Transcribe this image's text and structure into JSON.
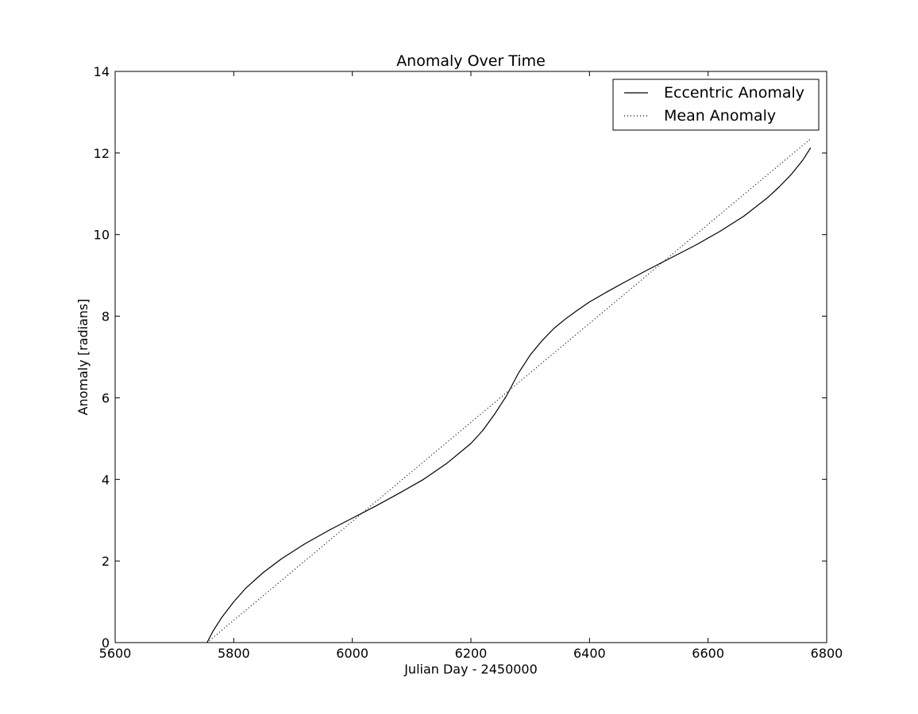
{
  "chart_data": {
    "type": "line",
    "title": "Anomaly Over Time",
    "xlabel": "Julian Day - 2450000",
    "ylabel": "Anomaly [radians]",
    "xlim": [
      5600,
      6800
    ],
    "ylim": [
      0,
      14
    ],
    "xticks": [
      5600,
      5800,
      6000,
      6200,
      6400,
      6600,
      6800
    ],
    "yticks": [
      0,
      2,
      4,
      6,
      8,
      10,
      12,
      14
    ],
    "grid": false,
    "legend_position": "top-right",
    "series": [
      {
        "name": "Eccentric Anomaly",
        "style": "solid",
        "color": "#000000",
        "x": [
          5755,
          5765,
          5780,
          5800,
          5820,
          5850,
          5880,
          5920,
          5960,
          6000,
          6040,
          6080,
          6120,
          6160,
          6200,
          6220,
          6240,
          6260,
          6280,
          6300,
          6320,
          6340,
          6360,
          6380,
          6400,
          6430,
          6460,
          6500,
          6540,
          6580,
          6620,
          6660,
          6700,
          6720,
          6740,
          6760,
          6773
        ],
        "y": [
          0,
          0.28,
          0.62,
          1.0,
          1.33,
          1.72,
          2.05,
          2.42,
          2.75,
          3.05,
          3.35,
          3.67,
          4.0,
          4.4,
          4.88,
          5.2,
          5.6,
          6.05,
          6.6,
          7.05,
          7.4,
          7.7,
          7.94,
          8.15,
          8.35,
          8.6,
          8.84,
          9.15,
          9.45,
          9.75,
          10.08,
          10.45,
          10.9,
          11.17,
          11.47,
          11.83,
          12.13
        ]
      },
      {
        "name": "Mean Anomaly",
        "style": "dotted",
        "color": "#000000",
        "x": [
          5755,
          6773
        ],
        "y": [
          0,
          12.35
        ]
      }
    ]
  }
}
